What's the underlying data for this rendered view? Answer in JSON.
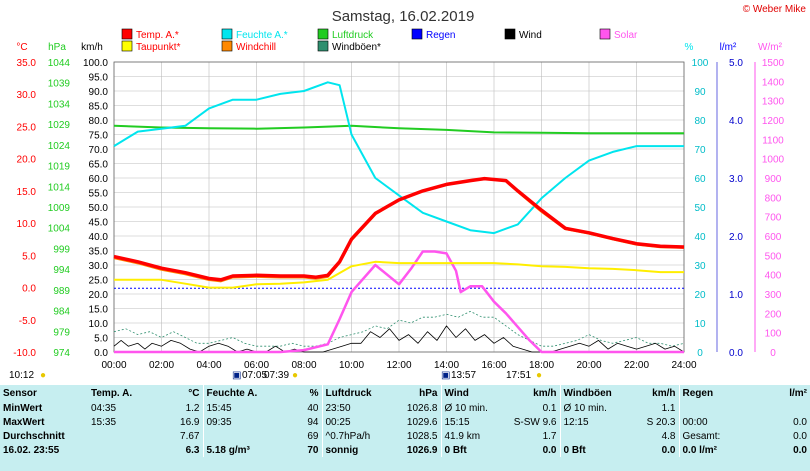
{
  "title": "Samstag, 16.02.2019",
  "brand": "© Weber Mike",
  "colors": {
    "temp": "#ff0000",
    "humidity": "#00e5ee",
    "pressure": "#22cc22",
    "wind": "#000000",
    "solar": "#ff55ee",
    "dewpoint": "#ffff00",
    "windchill": "#ff8800",
    "gust": "#2f8f6f",
    "rain": "#0000ff",
    "tableBg": "#c6eef0"
  },
  "legend": [
    {
      "key": "temp",
      "label": "Temp. A.*",
      "color": "#ff0000"
    },
    {
      "key": "humidity",
      "label": "Feuchte A.*",
      "color": "#00e5ee"
    },
    {
      "key": "pressure",
      "label": "Luftdruck",
      "color": "#22cc22"
    },
    {
      "key": "rain",
      "label": "Regen",
      "color": "#0000ff"
    },
    {
      "key": "wind",
      "label": "Wind",
      "color": "#000000"
    },
    {
      "key": "solar",
      "label": "Solar",
      "color": "#ff55ee"
    },
    {
      "key": "dewpoint",
      "label": "Taupunkt*",
      "color": "#ffff00"
    },
    {
      "key": "windchill",
      "label": "Windchill",
      "color": "#ff8800"
    },
    {
      "key": "gust",
      "label": "Windböen*",
      "color": "#2f8f6f"
    }
  ],
  "chart_data": {
    "type": "line",
    "title": "Samstag, 16.02.2019",
    "x_ticks": [
      "00:00",
      "02:00",
      "04:00",
      "06:00",
      "08:00",
      "10:00",
      "12:00",
      "14:00",
      "16:00",
      "18:00",
      "20:00",
      "22:00",
      "24:00"
    ],
    "xlim": [
      0,
      24
    ],
    "grid": true,
    "axes": {
      "temp": {
        "unit": "°C",
        "range": [
          -10,
          35
        ],
        "ticks": [
          "35.0",
          "30.0",
          "25.0",
          "20.0",
          "15.0",
          "10.0",
          "5.0",
          "0.0",
          "-5.0",
          "-10.0"
        ]
      },
      "pressure": {
        "unit": "hPa",
        "range": [
          974,
          1044
        ],
        "ticks": [
          "1044",
          "1039",
          "1034",
          "1029",
          "1024",
          "1019",
          "1014",
          "1009",
          "1004",
          "999",
          "994",
          "989",
          "984",
          "979",
          "974"
        ]
      },
      "wind": {
        "unit": "km/h",
        "range": [
          0,
          100
        ],
        "ticks": [
          "100.0",
          "95.0",
          "90.0",
          "85.0",
          "80.0",
          "75.0",
          "70.0",
          "65.0",
          "60.0",
          "55.0",
          "50.0",
          "45.0",
          "40.0",
          "35.0",
          "30.0",
          "25.0",
          "20.0",
          "15.0",
          "10.0",
          "5.0",
          "0.0"
        ]
      },
      "humidity": {
        "unit": "%",
        "range": [
          0,
          100
        ],
        "ticks": [
          "100",
          "90",
          "80",
          "70",
          "60",
          "50",
          "40",
          "30",
          "20",
          "10",
          "0"
        ]
      },
      "rain": {
        "unit": "l/m²",
        "range": [
          0,
          5
        ],
        "ticks": [
          "5.0",
          "4.0",
          "3.0",
          "2.0",
          "1.0",
          "0.0"
        ]
      },
      "solar": {
        "unit": "W/m²",
        "range": [
          0,
          1500
        ],
        "ticks": [
          "1500",
          "1400",
          "1300",
          "1200",
          "1100",
          "1000",
          "900",
          "800",
          "700",
          "600",
          "500",
          "400",
          "300",
          "200",
          "100",
          "0"
        ]
      }
    },
    "series": [
      {
        "name": "Temp. A.*",
        "axis": "temp",
        "x": [
          0,
          1,
          2,
          3,
          4,
          4.5,
          5,
          6,
          7,
          8,
          8.5,
          9,
          9.5,
          10,
          11,
          12,
          13,
          14,
          15,
          15.6,
          16.5,
          17,
          18,
          19,
          20,
          21,
          22,
          23,
          24
        ],
        "y": [
          4.8,
          4.0,
          3.0,
          2.3,
          1.4,
          1.2,
          1.8,
          1.9,
          1.8,
          1.8,
          1.6,
          1.9,
          4.0,
          7.5,
          11.5,
          13.6,
          15.0,
          16.0,
          16.6,
          16.9,
          16.6,
          15.0,
          12.0,
          9.2,
          8.5,
          7.6,
          6.8,
          6.4,
          6.3
        ]
      },
      {
        "name": "Feuchte A.*",
        "axis": "humidity",
        "x": [
          0,
          1,
          2,
          3,
          4,
          5,
          6,
          7,
          8,
          9,
          9.5,
          10,
          11,
          12,
          13,
          14,
          15,
          16,
          17,
          18,
          19,
          20,
          21,
          22,
          23,
          24
        ],
        "y": [
          71,
          76,
          77,
          78,
          84,
          87,
          87,
          89,
          90,
          93,
          92,
          75,
          60,
          54,
          48,
          45,
          42,
          41,
          44,
          53,
          60,
          66,
          69,
          71,
          71,
          71
        ]
      },
      {
        "name": "Luftdruck",
        "axis": "pressure",
        "x": [
          0,
          2,
          4,
          6,
          8,
          10,
          12,
          14,
          16,
          18,
          20,
          22,
          24
        ],
        "y": [
          1028.6,
          1028.2,
          1028.0,
          1027.9,
          1028.2,
          1028.6,
          1028.0,
          1027.6,
          1027.0,
          1026.9,
          1026.8,
          1026.8,
          1026.8
        ]
      },
      {
        "name": "Taupunkt*",
        "axis": "temp",
        "x": [
          0,
          1,
          2,
          3,
          4,
          5,
          6,
          7,
          8,
          9,
          10,
          11,
          12,
          13,
          14,
          15,
          16,
          17,
          18,
          19,
          20,
          21,
          22,
          23,
          24
        ],
        "y": [
          1.2,
          1.2,
          1.2,
          0.6,
          0.0,
          0.0,
          0.5,
          0.6,
          0.8,
          1.2,
          3.3,
          4.0,
          3.8,
          3.8,
          3.8,
          3.8,
          3.8,
          3.6,
          3.3,
          3.2,
          3.0,
          2.9,
          2.7,
          2.4,
          2.4
        ]
      },
      {
        "name": "Windchill",
        "axis": "temp",
        "x": [
          0,
          1,
          2,
          3,
          4,
          4.5,
          5,
          6,
          7,
          8,
          8.5,
          9,
          9.5,
          10,
          11,
          12,
          13,
          14,
          15,
          15.6,
          16.5,
          17,
          18,
          19,
          20,
          21,
          22,
          23,
          24
        ],
        "y": [
          4.6,
          3.8,
          2.8,
          2.1,
          1.2,
          1.0,
          1.6,
          1.7,
          1.6,
          1.6,
          1.4,
          1.7,
          3.9,
          7.4,
          11.4,
          13.6,
          15.0,
          16.0,
          16.6,
          16.9,
          16.6,
          14.9,
          11.8,
          9.1,
          8.4,
          7.5,
          6.7,
          6.3,
          6.2
        ]
      },
      {
        "name": "Solar",
        "axis": "solar",
        "x": [
          0,
          7,
          8,
          9,
          9.5,
          10,
          11,
          12,
          12.5,
          13,
          13.5,
          14,
          14.4,
          14.6,
          15,
          15.5,
          16,
          16.5,
          17,
          17.5,
          18,
          24
        ],
        "y": [
          0,
          0,
          10,
          40,
          170,
          310,
          450,
          350,
          430,
          520,
          520,
          510,
          420,
          310,
          340,
          340,
          260,
          200,
          130,
          60,
          0,
          0
        ]
      },
      {
        "name": "Wind",
        "axis": "wind",
        "x": [
          0,
          0.3,
          0.6,
          1,
          1.3,
          1.6,
          2,
          2.4,
          2.8,
          3.2,
          3.6,
          4,
          4.4,
          4.8,
          5.2,
          5.6,
          6,
          6.4,
          6.8,
          7.2,
          7.6,
          8,
          8.4,
          8.8,
          9.2,
          9.6,
          10,
          10.4,
          10.8,
          11.2,
          11.6,
          12,
          12.4,
          12.8,
          13.2,
          13.6,
          14,
          14.4,
          14.8,
          15.2,
          15.6,
          16,
          16.4,
          16.8,
          17.2,
          17.6,
          18,
          18.4,
          18.8,
          19.2,
          19.6,
          20,
          20.4,
          20.8,
          21.2,
          21.6,
          22,
          22.4,
          22.8,
          23.2,
          23.6,
          24
        ],
        "y": [
          2,
          4,
          2,
          3,
          1,
          3,
          2,
          4,
          3,
          1,
          0,
          2,
          3,
          2,
          0,
          1,
          0,
          0,
          2,
          0,
          1,
          0,
          0,
          0,
          1,
          2,
          3,
          3,
          7,
          5,
          8,
          4,
          6,
          3,
          7,
          4,
          9,
          5,
          8,
          4,
          6,
          3,
          5,
          2,
          1,
          0,
          0,
          0,
          1,
          2,
          3,
          2,
          4,
          1,
          3,
          2,
          1,
          2,
          3,
          1,
          2,
          0
        ]
      },
      {
        "name": "Windböen*",
        "axis": "wind",
        "x": [
          0,
          0.5,
          1,
          1.5,
          2,
          2.5,
          3,
          3.5,
          4,
          4.5,
          5,
          5.5,
          6,
          6.5,
          7,
          7.5,
          8,
          8.5,
          9,
          9.5,
          10,
          10.5,
          11,
          11.5,
          12,
          12.5,
          13,
          13.5,
          14,
          14.5,
          15,
          15.5,
          16,
          16.5,
          17,
          17.5,
          18,
          18.5,
          19,
          19.5,
          20,
          20.5,
          21,
          21.5,
          22,
          22.5,
          23,
          23.5,
          24
        ],
        "y": [
          7,
          8,
          6,
          7,
          5,
          7,
          5,
          3,
          3,
          4,
          5,
          3,
          2,
          2,
          2,
          3,
          2,
          2,
          3,
          5,
          6,
          7,
          9,
          8,
          11,
          10,
          12,
          12,
          13,
          12,
          14,
          12,
          12,
          9,
          6,
          4,
          2,
          2,
          3,
          4,
          6,
          4,
          3,
          4,
          5,
          3,
          3,
          2,
          3
        ]
      },
      {
        "name": "Regen",
        "axis": "rain",
        "x": [
          0,
          24
        ],
        "y": [
          1.1,
          1.1
        ]
      }
    ]
  },
  "sun": {
    "current_time": "10:12",
    "sunrise": "07:05",
    "sunset": "17:51",
    "noon": "13:57",
    "dawn": "07:39"
  },
  "table": {
    "headers": {
      "sensor": "Sensor",
      "temp": "Temp. A.",
      "temp_unit": "°C",
      "hum": "Feuchte A.",
      "hum_unit": "%",
      "press": "Luftdruck",
      "press_unit": "hPa",
      "wind": "Wind",
      "wind_unit": "km/h",
      "gust": "Windböen",
      "gust_unit": "km/h",
      "rain": "Regen",
      "rain_unit": "l/m²"
    },
    "rows": [
      {
        "label": "MinWert",
        "c": [
          "04:35",
          "1.2",
          "15:45",
          "40",
          "23:50",
          "1026.8",
          "Ø 10 min.",
          "0.1",
          "Ø 10 min.",
          "1.1",
          "",
          ""
        ]
      },
      {
        "label": "MaxWert",
        "c": [
          "15:35",
          "16.9",
          "09:35",
          "94",
          "00:25",
          "1029.6",
          "15:15",
          "S-SW 9.6",
          "12:15",
          "S 20.3",
          "00:00",
          "0.0"
        ]
      },
      {
        "label": "Durchschnitt",
        "c": [
          "",
          "7.67",
          "",
          "69",
          "^0.7hPa/h",
          "1028.5",
          "41.9 km",
          "1.7",
          "",
          "4.8",
          "Gesamt:",
          "0.0"
        ]
      },
      {
        "label": "16.02. 23:55",
        "c": [
          "",
          "6.3",
          "5.18 g/m³",
          "70",
          "sonnig",
          "1026.9",
          "0 Bft",
          "0.0",
          "0 Bft",
          "0.0",
          "0.0 l/m²",
          "0.0"
        ]
      }
    ]
  }
}
